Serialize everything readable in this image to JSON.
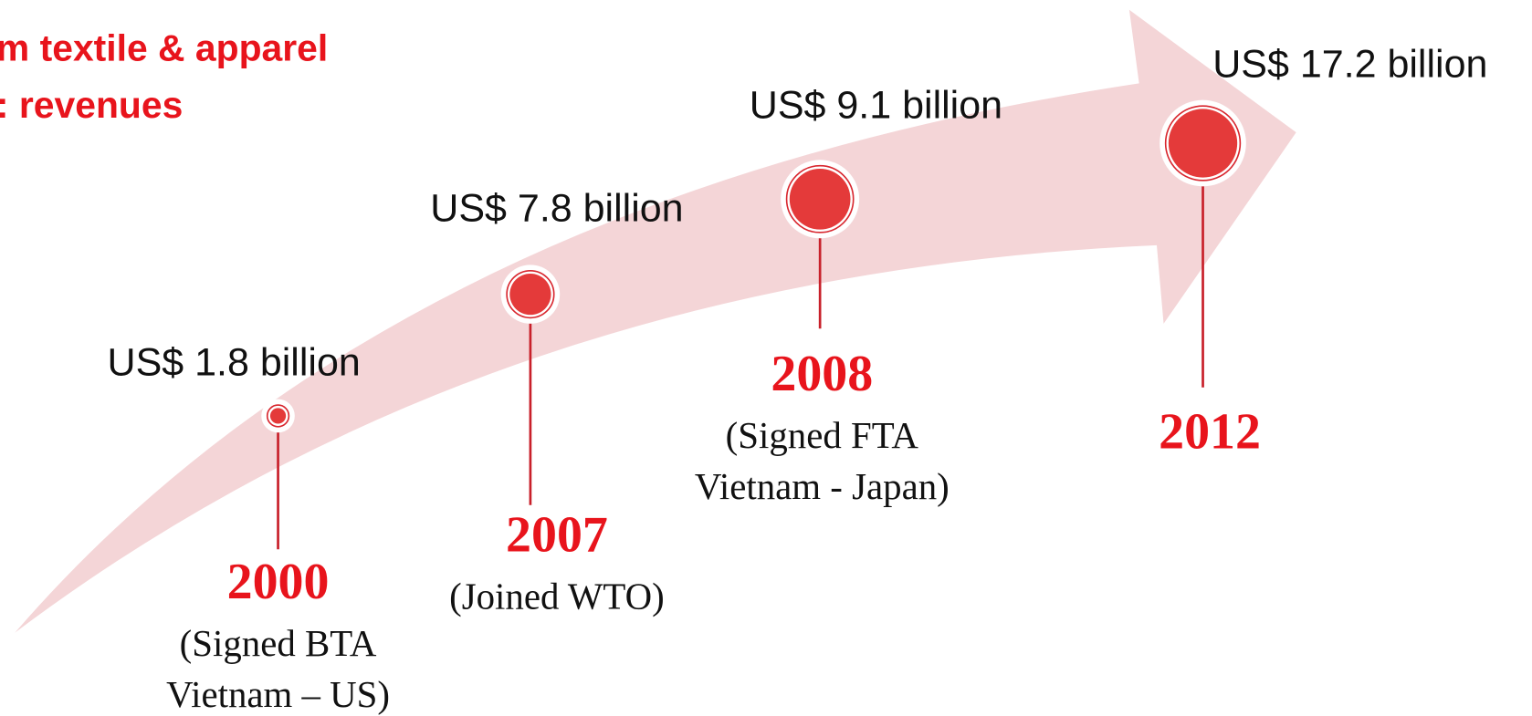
{
  "title": {
    "lines": [
      "m textile & apparel",
      ": revenues"
    ]
  },
  "milestones": [
    {
      "value": "US$ 1.8 billion",
      "year": "2000",
      "description": [
        "(Signed BTA",
        "Vietnam – US)"
      ]
    },
    {
      "value": "US$ 7.8 billion",
      "year": "2007",
      "description": [
        "(Joined WTO)"
      ]
    },
    {
      "value": "US$ 9.1 billion",
      "year": "2008",
      "description": [
        "(Signed FTA",
        "Vietnam - Japan)"
      ]
    },
    {
      "value": "US$ 17.2 billion",
      "year": "2012",
      "description": []
    }
  ]
}
